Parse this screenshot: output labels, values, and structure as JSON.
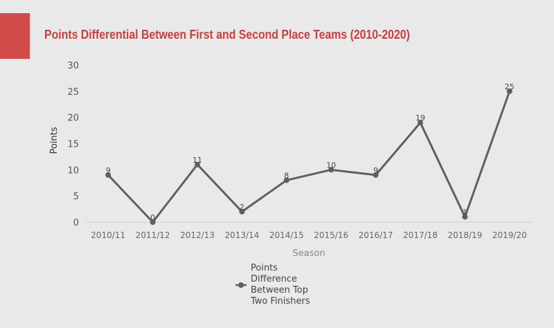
{
  "chart_data": {
    "type": "line",
    "title": "Points Differential Between First and Second Place Teams (2010-2020)",
    "xlabel": "Season",
    "ylabel": "Points",
    "ylim": [
      0,
      30
    ],
    "yticks": [
      "0",
      "5",
      "10",
      "15",
      "20",
      "25",
      "30"
    ],
    "categories": [
      "2010/11",
      "2011/12",
      "2012/13",
      "2013/14",
      "2014/15",
      "2015/16",
      "2016/17",
      "2017/18",
      "2018/19",
      "2019/20"
    ],
    "series": [
      {
        "name": "Points Difference Between Top Two Finishers",
        "values": [
          9,
          0,
          11,
          2,
          8,
          10,
          9,
          19,
          1,
          25
        ]
      }
    ],
    "data_labels": true,
    "grid": false,
    "legend": "bottom",
    "line_color": "#5f5f5f",
    "accent_color": "#d24b4b",
    "title_color": "#d23c3c"
  }
}
